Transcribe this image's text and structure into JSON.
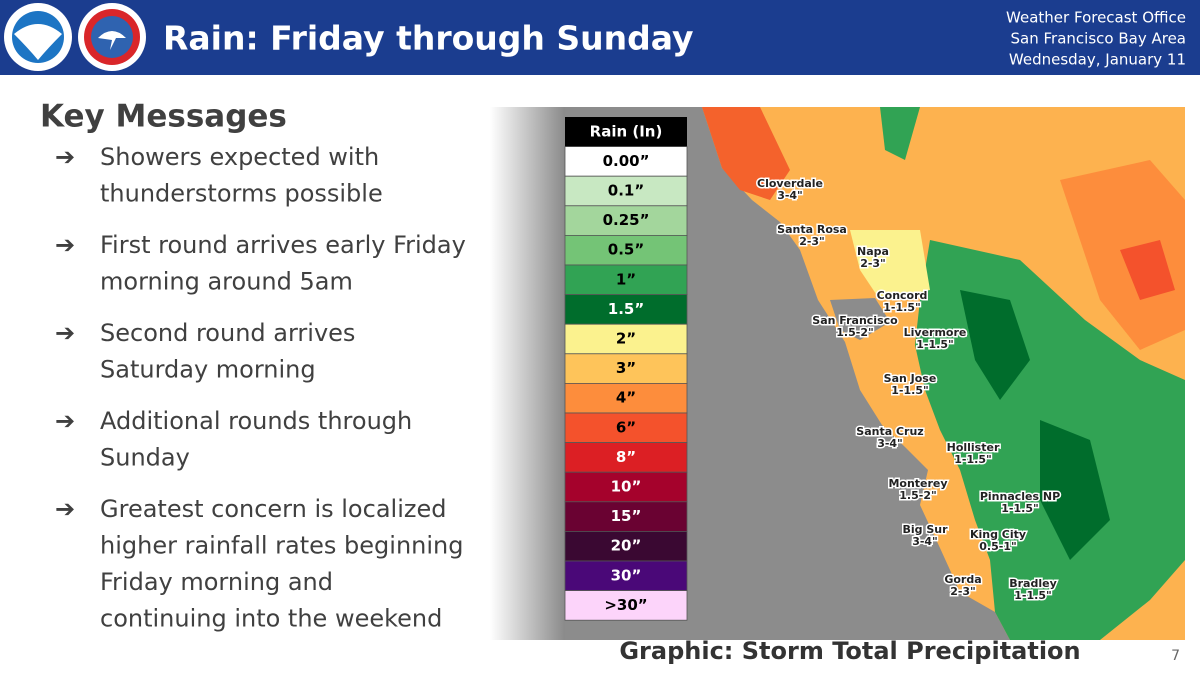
{
  "header": {
    "title": "Rain: Friday through Sunday",
    "office": [
      "Weather Forecast Office",
      "San Francisco Bay Area",
      "Wednesday, January 11"
    ]
  },
  "key_messages": {
    "heading": "Key Messages",
    "items": [
      [
        "Showers expected with",
        "thunderstorms possible"
      ],
      [
        "First round arrives early Friday",
        "morning around 5am"
      ],
      [
        "Second round arrives",
        "Saturday morning"
      ],
      [
        "Additional rounds through",
        "Sunday"
      ],
      [
        "Greatest concern is localized",
        "higher rainfall rates beginning",
        "Friday morning and",
        "continuing into the weekend"
      ]
    ]
  },
  "legend": {
    "title": "Rain (In)",
    "entries": [
      {
        "label": "0.00”",
        "color": "#ffffff"
      },
      {
        "label": "0.1”",
        "color": "#c8e8c2"
      },
      {
        "label": "0.25”",
        "color": "#a3d69c"
      },
      {
        "label": "0.5”",
        "color": "#74c476"
      },
      {
        "label": "1”",
        "color": "#31a354"
      },
      {
        "label": "1.5”",
        "color": "#006d2c"
      },
      {
        "label": "2”",
        "color": "#fbf28e"
      },
      {
        "label": "3”",
        "color": "#fec45a"
      },
      {
        "label": "4”",
        "color": "#fd8d3c"
      },
      {
        "label": "6”",
        "color": "#f4522c"
      },
      {
        "label": "8”",
        "color": "#dc1f24"
      },
      {
        "label": "10”",
        "color": "#a5022c"
      },
      {
        "label": "15”",
        "color": "#6a0232"
      },
      {
        "label": "20”",
        "color": "#3a0832"
      },
      {
        "label": "30”",
        "color": "#4a0878"
      },
      {
        "label": ">30”",
        "color": "#fcd4fa"
      }
    ]
  },
  "map_labels": [
    {
      "place": "Cloverdale",
      "amount": "3-4\""
    },
    {
      "place": "Santa Rosa",
      "amount": "2-3\""
    },
    {
      "place": "Napa",
      "amount": "2-3\""
    },
    {
      "place": "Concord",
      "amount": "1-1.5\""
    },
    {
      "place": "San Francisco",
      "amount": "1.5-2\""
    },
    {
      "place": "Livermore",
      "amount": "1-1.5\""
    },
    {
      "place": "San Jose",
      "amount": "1-1.5\""
    },
    {
      "place": "Santa Cruz",
      "amount": "3-4\""
    },
    {
      "place": "Hollister",
      "amount": "1-1.5\""
    },
    {
      "place": "Monterey",
      "amount": "1.5-2\""
    },
    {
      "place": "Pinnacles NP",
      "amount": "1-1.5\""
    },
    {
      "place": "Big Sur",
      "amount": "3-4\""
    },
    {
      "place": "King City",
      "amount": "0.5-1\""
    },
    {
      "place": "Gorda",
      "amount": "2-3\""
    },
    {
      "place": "Bradley",
      "amount": "1-1.5\""
    }
  ],
  "caption": "Graphic: Storm Total Precipitation",
  "page_number": "7"
}
